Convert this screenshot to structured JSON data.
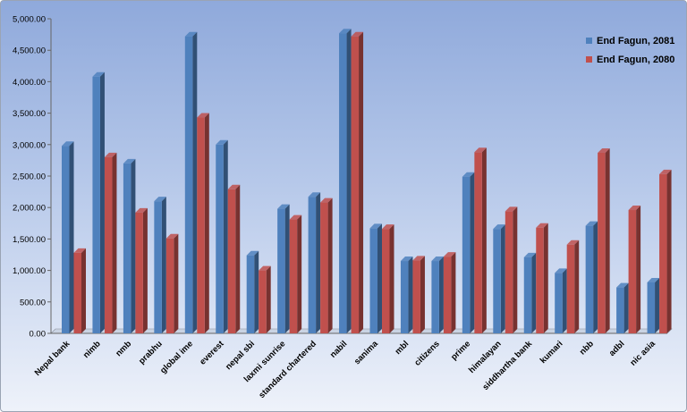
{
  "chart_data": {
    "type": "bar",
    "categories": [
      "Nepal bank",
      "nimb",
      "nmb",
      "prabhu",
      "global ime",
      "everest",
      "nepal sbi",
      "laxmi sunrise",
      "standard chartered",
      "nabil",
      "sanima",
      "mbl",
      "citizens",
      "prime",
      "himalayan",
      "siddhartha bank",
      "kumari",
      "nbb",
      "adbl",
      "nic asia"
    ],
    "series": [
      {
        "name": "End Fagun, 2081",
        "color": "#4f81bd",
        "values": [
          2980,
          4080,
          2700,
          2100,
          4720,
          3000,
          1240,
          1980,
          2170,
          4770,
          1670,
          1150,
          1150,
          2490,
          1660,
          1210,
          960,
          1710,
          730,
          810
        ]
      },
      {
        "name": "End Fagun, 2080",
        "color": "#c0504d",
        "values": [
          1280,
          2800,
          1920,
          1510,
          3430,
          2290,
          1000,
          1810,
          2080,
          4720,
          1660,
          1160,
          1220,
          2880,
          1940,
          1680,
          1410,
          2870,
          1960,
          2530
        ]
      }
    ],
    "y_tick_labels": [
      "0.00",
      "500.00",
      "1,000.00",
      "1,500.00",
      "2,000.00",
      "2,500.00",
      "3,000.00",
      "3,500.00",
      "4,000.00",
      "4,500.00",
      "5,000.00"
    ],
    "ylim": [
      0,
      5000
    ],
    "y_step": 500,
    "grid": false,
    "legend_position": "top-right",
    "title": "",
    "xlabel": "",
    "ylabel": ""
  }
}
